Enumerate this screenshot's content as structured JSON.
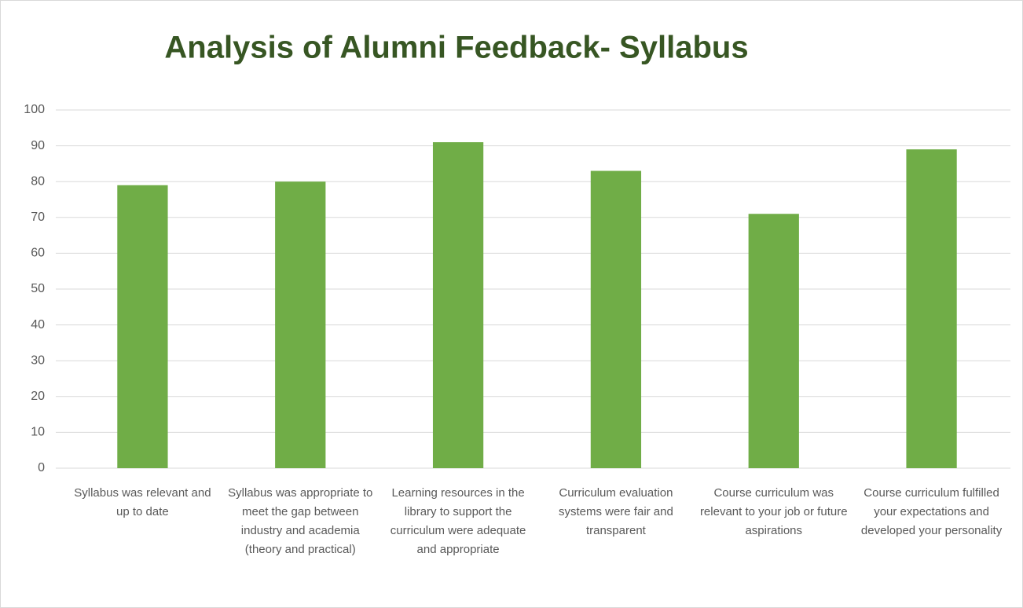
{
  "chart_data": {
    "type": "bar",
    "title": "Analysis of Alumni Feedback- Syllabus",
    "categories": [
      "Syllabus was relevant and up to date",
      "Syllabus was appropriate to meet the gap between industry and academia (theory and practical)",
      "Learning resources in the library to support the curriculum were adequate and appropriate",
      "Curriculum evaluation systems were fair and transparent",
      "Course curriculum was relevant to your job or future aspirations",
      "Course curriculum fulfilled your expectations and developed your personality"
    ],
    "values": [
      79,
      80,
      91,
      83,
      71,
      89
    ],
    "color": "#70ad47",
    "ylim": [
      0,
      100
    ],
    "yticks": [
      0,
      10,
      20,
      30,
      40,
      50,
      60,
      70,
      80,
      90,
      100
    ],
    "grid": true
  }
}
